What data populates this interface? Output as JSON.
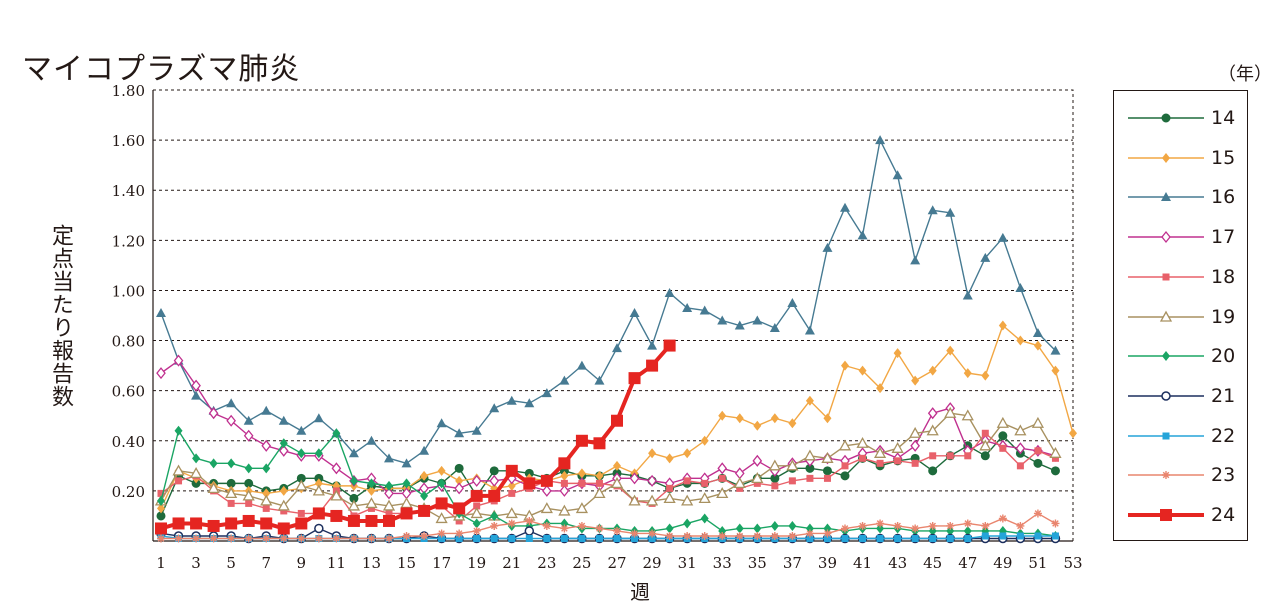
{
  "title": "マイコプラズマ肺炎",
  "unit_label": "（年）",
  "colors": {
    "axis": "#231815",
    "grid": "#231815"
  },
  "chart_data": {
    "type": "line",
    "title": "マイコプラズマ肺炎",
    "xlabel": "週",
    "ylabel": "定点当たり報告数",
    "xlim": [
      1,
      53
    ],
    "ylim": [
      0,
      1.8
    ],
    "x_ticks": [
      1,
      3,
      5,
      7,
      9,
      11,
      13,
      15,
      17,
      19,
      21,
      23,
      25,
      27,
      29,
      31,
      33,
      35,
      37,
      39,
      41,
      43,
      45,
      47,
      49,
      51,
      53
    ],
    "y_ticks": [
      "0.20",
      "0.40",
      "0.60",
      "0.80",
      "1.00",
      "1.20",
      "1.40",
      "1.60",
      "1.80"
    ],
    "y_tick_values": [
      0.2,
      0.4,
      0.6,
      0.8,
      1.0,
      1.2,
      1.4,
      1.6,
      1.8
    ],
    "grid": "horizontal dashed",
    "legend_position": "right",
    "series": [
      {
        "name": "14",
        "color": "#1e6b3c",
        "marker": "circle-filled",
        "values": [
          0.1,
          0.26,
          0.23,
          0.23,
          0.23,
          0.23,
          0.2,
          0.21,
          0.25,
          0.25,
          0.22,
          0.17,
          0.22,
          0.21,
          0.21,
          0.25,
          0.23,
          0.29,
          0.18,
          0.28,
          0.28,
          0.27,
          0.25,
          0.28,
          0.26,
          0.26,
          0.27,
          0.26,
          0.24,
          0.21,
          0.23,
          0.23,
          0.25,
          0.22,
          0.25,
          0.25,
          0.29,
          0.29,
          0.28,
          0.26,
          0.33,
          0.3,
          0.32,
          0.33,
          0.28,
          0.34,
          0.38,
          0.34,
          0.42,
          0.35,
          0.31,
          0.28
        ]
      },
      {
        "name": "15",
        "color": "#f2a744",
        "marker": "diamond-filled",
        "values": [
          0.13,
          0.28,
          0.25,
          0.22,
          0.2,
          0.2,
          0.19,
          0.2,
          0.21,
          0.23,
          0.22,
          0.22,
          0.2,
          0.21,
          0.21,
          0.26,
          0.28,
          0.24,
          0.25,
          0.21,
          0.22,
          0.25,
          0.24,
          0.26,
          0.27,
          0.26,
          0.3,
          0.27,
          0.35,
          0.33,
          0.35,
          0.4,
          0.5,
          0.49,
          0.46,
          0.49,
          0.47,
          0.56,
          0.49,
          0.7,
          0.68,
          0.61,
          0.75,
          0.64,
          0.68,
          0.76,
          0.67,
          0.66,
          0.86,
          0.8,
          0.78,
          0.68,
          0.43
        ]
      },
      {
        "name": "16",
        "color": "#467a92",
        "marker": "triangle-filled",
        "values": [
          0.91,
          0.72,
          0.58,
          0.52,
          0.55,
          0.48,
          0.52,
          0.48,
          0.44,
          0.49,
          0.43,
          0.35,
          0.4,
          0.33,
          0.31,
          0.36,
          0.47,
          0.43,
          0.44,
          0.53,
          0.56,
          0.55,
          0.59,
          0.64,
          0.7,
          0.64,
          0.77,
          0.91,
          0.78,
          0.99,
          0.93,
          0.92,
          0.88,
          0.86,
          0.88,
          0.85,
          0.95,
          0.84,
          1.17,
          1.33,
          1.22,
          1.6,
          1.46,
          1.12,
          1.32,
          1.31,
          0.98,
          1.13,
          1.21,
          1.01,
          0.83,
          0.76
        ]
      },
      {
        "name": "17",
        "color": "#c0308f",
        "marker": "diamond-open",
        "values": [
          0.67,
          0.72,
          0.62,
          0.51,
          0.48,
          0.42,
          0.38,
          0.36,
          0.34,
          0.34,
          0.29,
          0.24,
          0.25,
          0.19,
          0.19,
          0.21,
          0.22,
          0.21,
          0.24,
          0.24,
          0.25,
          0.22,
          0.2,
          0.2,
          0.23,
          0.22,
          0.25,
          0.25,
          0.24,
          0.23,
          0.25,
          0.25,
          0.29,
          0.27,
          0.32,
          0.28,
          0.31,
          0.32,
          0.33,
          0.32,
          0.35,
          0.36,
          0.33,
          0.38,
          0.51,
          0.53,
          0.36,
          0.4,
          0.38,
          0.37,
          0.36,
          0.34
        ]
      },
      {
        "name": "18",
        "color": "#e8616a",
        "marker": "square-filled",
        "values": [
          0.19,
          0.24,
          0.26,
          0.2,
          0.15,
          0.15,
          0.13,
          0.12,
          0.11,
          0.11,
          0.2,
          0.1,
          0.13,
          0.11,
          0.11,
          0.12,
          0.14,
          0.08,
          0.14,
          0.16,
          0.19,
          0.21,
          0.24,
          0.23,
          0.23,
          0.23,
          0.22,
          0.16,
          0.15,
          0.21,
          0.24,
          0.23,
          0.25,
          0.21,
          0.23,
          0.22,
          0.24,
          0.25,
          0.25,
          0.3,
          0.33,
          0.31,
          0.32,
          0.31,
          0.34,
          0.34,
          0.34,
          0.43,
          0.37,
          0.3,
          0.36,
          0.33
        ]
      },
      {
        "name": "19",
        "color": "#a89160",
        "marker": "triangle-open",
        "values": [
          0.16,
          0.28,
          0.27,
          0.21,
          0.19,
          0.18,
          0.16,
          0.14,
          0.22,
          0.2,
          0.18,
          0.14,
          0.15,
          0.14,
          0.15,
          0.13,
          0.09,
          0.1,
          0.11,
          0.1,
          0.11,
          0.1,
          0.13,
          0.12,
          0.13,
          0.19,
          0.23,
          0.16,
          0.16,
          0.17,
          0.16,
          0.17,
          0.19,
          0.23,
          0.25,
          0.3,
          0.3,
          0.34,
          0.33,
          0.38,
          0.39,
          0.35,
          0.37,
          0.43,
          0.44,
          0.51,
          0.5,
          0.38,
          0.47,
          0.44,
          0.47,
          0.35
        ]
      },
      {
        "name": "20",
        "color": "#1aa564",
        "marker": "diamond-filled",
        "values": [
          0.16,
          0.44,
          0.33,
          0.31,
          0.31,
          0.29,
          0.29,
          0.39,
          0.35,
          0.35,
          0.43,
          0.24,
          0.23,
          0.22,
          0.23,
          0.18,
          0.23,
          0.11,
          0.07,
          0.1,
          0.06,
          0.06,
          0.07,
          0.07,
          0.05,
          0.05,
          0.05,
          0.04,
          0.04,
          0.05,
          0.07,
          0.09,
          0.04,
          0.05,
          0.05,
          0.06,
          0.06,
          0.05,
          0.05,
          0.04,
          0.05,
          0.05,
          0.05,
          0.04,
          0.04,
          0.04,
          0.04,
          0.04,
          0.04,
          0.03,
          0.03,
          0.02
        ]
      },
      {
        "name": "21",
        "color": "#1c2f5e",
        "marker": "circle-open",
        "values": [
          0.03,
          0.02,
          0.02,
          0.02,
          0.02,
          0.01,
          0.02,
          0.01,
          0.01,
          0.05,
          0.02,
          0.01,
          0.01,
          0.01,
          0.01,
          0.02,
          0.01,
          0.01,
          0.01,
          0.01,
          0.01,
          0.04,
          0.01,
          0.01,
          0.01,
          0.01,
          0.01,
          0.01,
          0.01,
          0.01,
          0.01,
          0.01,
          0.01,
          0.01,
          0.01,
          0.01,
          0.01,
          0.01,
          0.01,
          0.01,
          0.01,
          0.01,
          0.01,
          0.01,
          0.01,
          0.01,
          0.01,
          0.01,
          0.01,
          0.01,
          0.01,
          0.01
        ]
      },
      {
        "name": "22",
        "color": "#25a4d9",
        "marker": "square-filled",
        "values": [
          0.02,
          0.01,
          0.01,
          0.01,
          0.01,
          0.01,
          0.01,
          0.01,
          0.01,
          0.01,
          0.01,
          0.01,
          0.01,
          0.01,
          0.01,
          0.01,
          0.01,
          0.01,
          0.01,
          0.01,
          0.01,
          0.01,
          0.01,
          0.01,
          0.01,
          0.01,
          0.01,
          0.01,
          0.01,
          0.01,
          0.01,
          0.01,
          0.01,
          0.01,
          0.01,
          0.01,
          0.01,
          0.01,
          0.01,
          0.01,
          0.01,
          0.01,
          0.01,
          0.01,
          0.01,
          0.01,
          0.01,
          0.02,
          0.02,
          0.02,
          0.02,
          0.02
        ]
      },
      {
        "name": "23",
        "color": "#e9856e",
        "marker": "asterisk",
        "values": [
          0.01,
          0.01,
          0.01,
          0.01,
          0.01,
          0.01,
          0.01,
          0.01,
          0.01,
          0.01,
          0.01,
          0.01,
          0.01,
          0.01,
          0.02,
          0.02,
          0.03,
          0.03,
          0.04,
          0.06,
          0.07,
          0.08,
          0.06,
          0.05,
          0.06,
          0.05,
          0.04,
          0.03,
          0.03,
          0.02,
          0.02,
          0.02,
          0.02,
          0.02,
          0.02,
          0.02,
          0.02,
          0.03,
          0.03,
          0.05,
          0.06,
          0.07,
          0.06,
          0.05,
          0.06,
          0.06,
          0.07,
          0.06,
          0.09,
          0.06,
          0.11,
          0.07
        ]
      },
      {
        "name": "24",
        "color": "#e52521",
        "marker": "square-filled-large",
        "values": [
          0.05,
          0.07,
          0.07,
          0.06,
          0.07,
          0.08,
          0.07,
          0.05,
          0.07,
          0.11,
          0.1,
          0.08,
          0.08,
          0.08,
          0.11,
          0.12,
          0.15,
          0.13,
          0.18,
          0.18,
          0.28,
          0.23,
          0.24,
          0.31,
          0.4,
          0.39,
          0.48,
          0.65,
          0.7,
          0.78
        ]
      }
    ]
  }
}
